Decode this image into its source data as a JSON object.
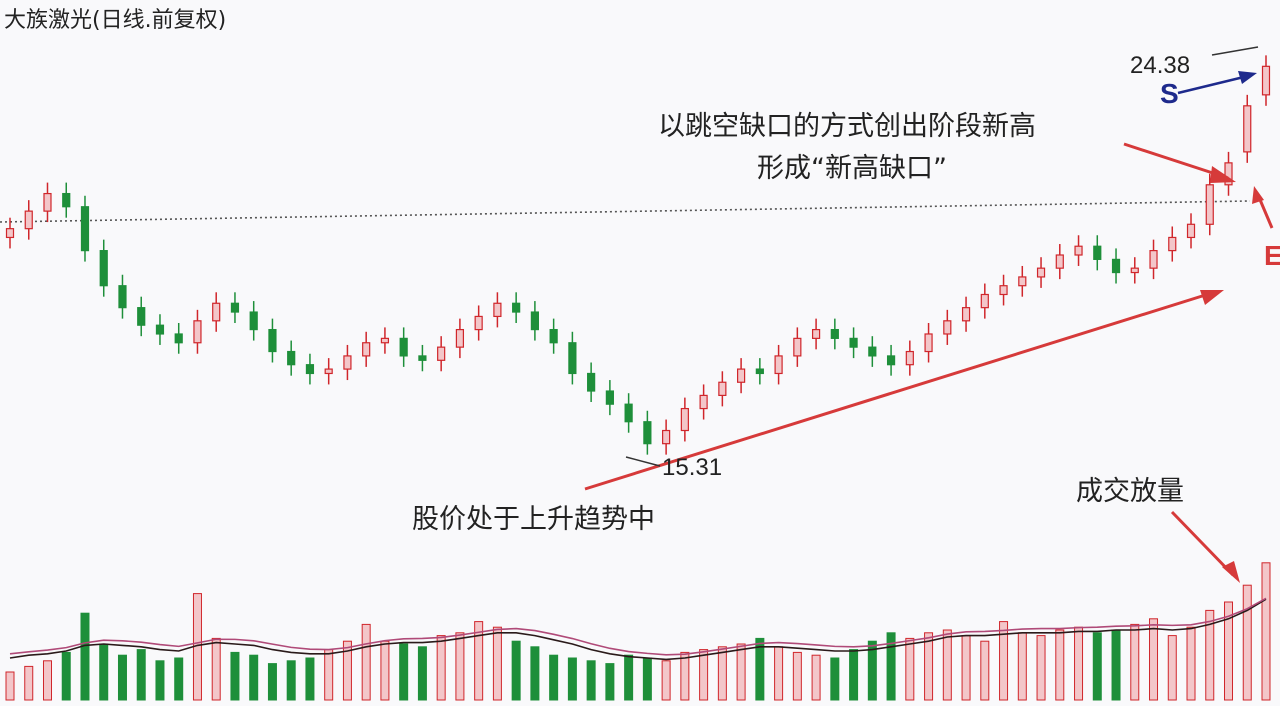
{
  "title": "大族激光(日线.前复权)",
  "annotations": {
    "gap_line1": "以跳空缺口的方式创出阶段新高",
    "gap_line2": "形成“新高缺口”",
    "trend": "股价处于上升趋势中",
    "volume": "成交放量"
  },
  "markers": {
    "s": "S",
    "e": "E"
  },
  "colors": {
    "background": "#f9f9fb",
    "up": "#d0262b",
    "up_fill": "#f3c6c9",
    "down": "#1e8f3a",
    "ma_volume_1": "#2a1a1a",
    "ma_volume_2": "#b04a78",
    "arrow": "#d63a3a",
    "arrow_blue": "#1e2a8c",
    "resistance": "#555555"
  },
  "chart_data": {
    "type": "candlestick",
    "price_labels": {
      "low": "15.31",
      "high": "24.38"
    },
    "ohlc_closes": [
      20.5,
      20.9,
      21.3,
      21.0,
      20.0,
      19.2,
      18.7,
      18.3,
      18.1,
      17.9,
      18.4,
      18.8,
      18.6,
      18.2,
      17.7,
      17.4,
      17.2,
      17.3,
      17.6,
      17.9,
      18.0,
      17.6,
      17.5,
      17.8,
      18.2,
      18.5,
      18.8,
      18.6,
      18.2,
      17.9,
      17.2,
      16.8,
      16.5,
      16.1,
      15.6,
      15.9,
      16.4,
      16.7,
      17.0,
      17.3,
      17.2,
      17.6,
      18.0,
      18.2,
      18.0,
      17.8,
      17.6,
      17.4,
      17.7,
      18.1,
      18.4,
      18.7,
      19.0,
      19.2,
      19.4,
      19.6,
      19.9,
      20.1,
      19.8,
      19.5,
      19.6,
      20.0,
      20.3,
      20.6,
      21.5,
      22.0,
      23.3,
      24.2
    ],
    "volume": [
      2.0,
      2.4,
      2.8,
      3.4,
      6.2,
      4.0,
      3.2,
      3.6,
      2.8,
      3.0,
      7.6,
      4.4,
      3.4,
      3.2,
      2.6,
      2.8,
      3.0,
      3.6,
      4.2,
      5.4,
      4.2,
      4.0,
      3.8,
      4.6,
      4.8,
      5.6,
      5.2,
      4.2,
      3.8,
      3.2,
      3.0,
      2.8,
      2.6,
      3.2,
      3.0,
      2.8,
      3.4,
      3.6,
      3.8,
      4.0,
      4.4,
      3.8,
      3.4,
      3.2,
      3.0,
      3.6,
      4.2,
      4.8,
      4.4,
      4.8,
      5.0,
      4.6,
      4.2,
      5.6,
      4.8,
      4.6,
      5.0,
      5.2,
      4.8,
      5.0,
      5.4,
      5.8,
      4.6,
      5.2,
      6.4,
      7.0,
      8.2,
      9.8
    ],
    "volume_ma": [
      3.0,
      3.2,
      3.3,
      3.5,
      3.9,
      4.0,
      3.9,
      3.8,
      3.6,
      3.5,
      3.9,
      4.1,
      4.0,
      3.9,
      3.6,
      3.4,
      3.3,
      3.3,
      3.5,
      3.8,
      4.0,
      4.1,
      4.1,
      4.2,
      4.4,
      4.6,
      4.8,
      4.8,
      4.6,
      4.3,
      4.0,
      3.6,
      3.3,
      3.1,
      3.0,
      2.9,
      3.0,
      3.2,
      3.4,
      3.6,
      3.8,
      3.8,
      3.7,
      3.6,
      3.5,
      3.5,
      3.6,
      3.8,
      4.0,
      4.2,
      4.5,
      4.6,
      4.6,
      4.7,
      4.8,
      4.8,
      4.8,
      4.9,
      4.9,
      5.0,
      5.0,
      5.1,
      5.0,
      5.1,
      5.4,
      5.8,
      6.4,
      7.2
    ]
  }
}
